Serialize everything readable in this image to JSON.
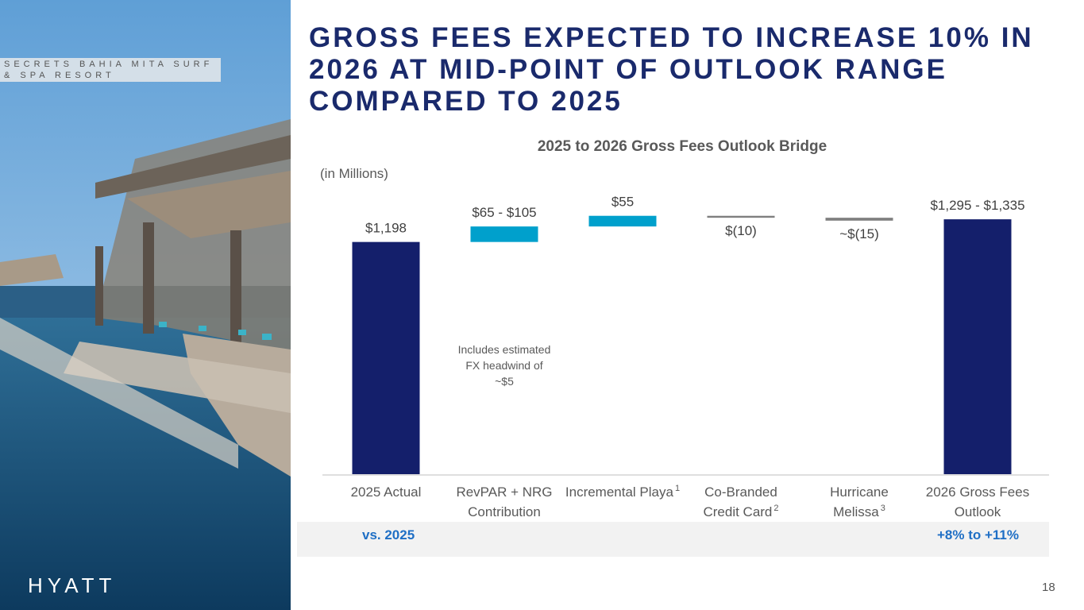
{
  "photo": {
    "caption": "SECRETS BAHIA MITA SURF & SPA RESORT",
    "brand_logo": "HYATT"
  },
  "header": {
    "title": "GROSS FEES EXPECTED TO INCREASE 10% IN 2026 AT MID-POINT OF OUTLOOK RANGE COMPARED TO 2025"
  },
  "chart_data": {
    "type": "bar",
    "subtype": "waterfall",
    "title": "2025 to 2026 Gross Fees Outlook Bridge",
    "unit_label": "(in Millions)",
    "categories": [
      "2025 Actual",
      "RevPAR + NRG Contribution",
      "Incremental Playa",
      "Co-Branded Credit Card",
      "Hurricane Melissa",
      "2026 Gross Fees Outlook"
    ],
    "category_lines": [
      [
        "2025 Actual"
      ],
      [
        "RevPAR + NRG",
        "Contribution"
      ],
      [
        "Incremental Playa"
      ],
      [
        "Co-Branded",
        "Credit Card"
      ],
      [
        "Hurricane",
        "Melissa"
      ],
      [
        "2026 Gross Fees",
        "Outlook"
      ]
    ],
    "footnotes": [
      "",
      "",
      "1",
      "2",
      "3",
      ""
    ],
    "bars": [
      {
        "kind": "total",
        "start": 0,
        "end": 1198,
        "label": "$1,198"
      },
      {
        "kind": "increase",
        "start": 1198,
        "end": 1278,
        "label": "$65 - $105"
      },
      {
        "kind": "increase",
        "start": 1278,
        "end": 1333,
        "label": "$55"
      },
      {
        "kind": "decrease",
        "start": 1333,
        "end": 1323,
        "label": "$(10)"
      },
      {
        "kind": "decrease",
        "start": 1323,
        "end": 1308,
        "label": "~$(15)"
      },
      {
        "kind": "total",
        "start": 0,
        "end": 1315,
        "label": "$1,295 - $1,335"
      }
    ],
    "annotation": [
      "Includes estimated",
      "FX headwind of",
      "~$5"
    ],
    "colors": {
      "total": "#141f6b",
      "increase": "#00a0cc",
      "decrease": "#7f7f7f"
    }
  },
  "comparison": {
    "label": "vs. 2025",
    "value": "+8% to +11%"
  },
  "page_number": "18"
}
